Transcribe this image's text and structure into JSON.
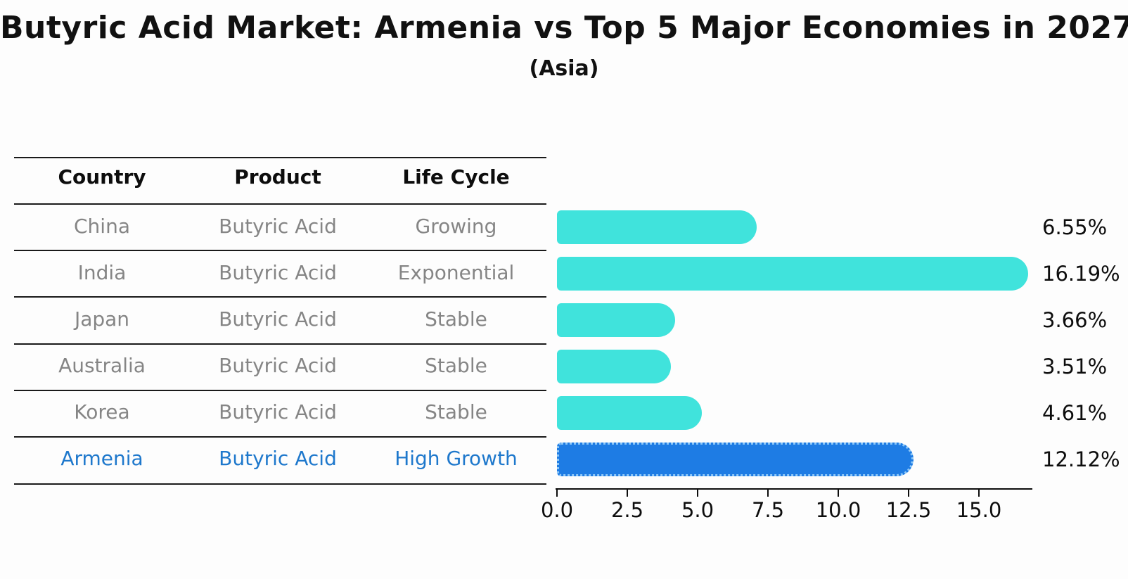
{
  "chart_data": {
    "type": "bar",
    "orientation": "horizontal",
    "title": "Butyric Acid Market: Armenia vs Top 5 Major Economies in 2027",
    "subtitle": "(Asia)",
    "categories": [
      "China",
      "India",
      "Japan",
      "Australia",
      "Korea",
      "Armenia"
    ],
    "values": [
      6.55,
      16.19,
      3.66,
      3.51,
      4.61,
      12.12
    ],
    "value_labels": [
      "6.55%",
      "16.19%",
      "3.66%",
      "3.51%",
      "4.61%",
      "12.12%"
    ],
    "xticks": [
      "0.0",
      "2.5",
      "5.0",
      "7.5",
      "10.0",
      "12.5",
      "15.0"
    ],
    "xtick_values": [
      0,
      2.5,
      5,
      7.5,
      10,
      12.5,
      15
    ],
    "xlim": [
      0,
      16.9
    ],
    "grid": false,
    "legend": null,
    "bar_color": "#40e3dc",
    "highlight_color": "#1e7ce4",
    "highlight_index": 5
  },
  "table": {
    "columns": [
      "Country",
      "Product",
      "Life Cycle"
    ],
    "rows": [
      {
        "country": "China",
        "product": "Butyric Acid",
        "life_cycle": "Growing"
      },
      {
        "country": "India",
        "product": "Butyric Acid",
        "life_cycle": "Exponential"
      },
      {
        "country": "Japan",
        "product": "Butyric Acid",
        "life_cycle": "Stable"
      },
      {
        "country": "Australia",
        "product": "Butyric Acid",
        "life_cycle": "Stable"
      },
      {
        "country": "Korea",
        "product": "Butyric Acid",
        "life_cycle": "Stable"
      },
      {
        "country": "Armenia",
        "product": "Butyric Acid",
        "life_cycle": "High Growth"
      }
    ]
  },
  "colors": {
    "background": "#fdfdfd",
    "text_gray": "#858585",
    "highlight_text": "#1e78cc",
    "line": "#1a1a1a"
  }
}
